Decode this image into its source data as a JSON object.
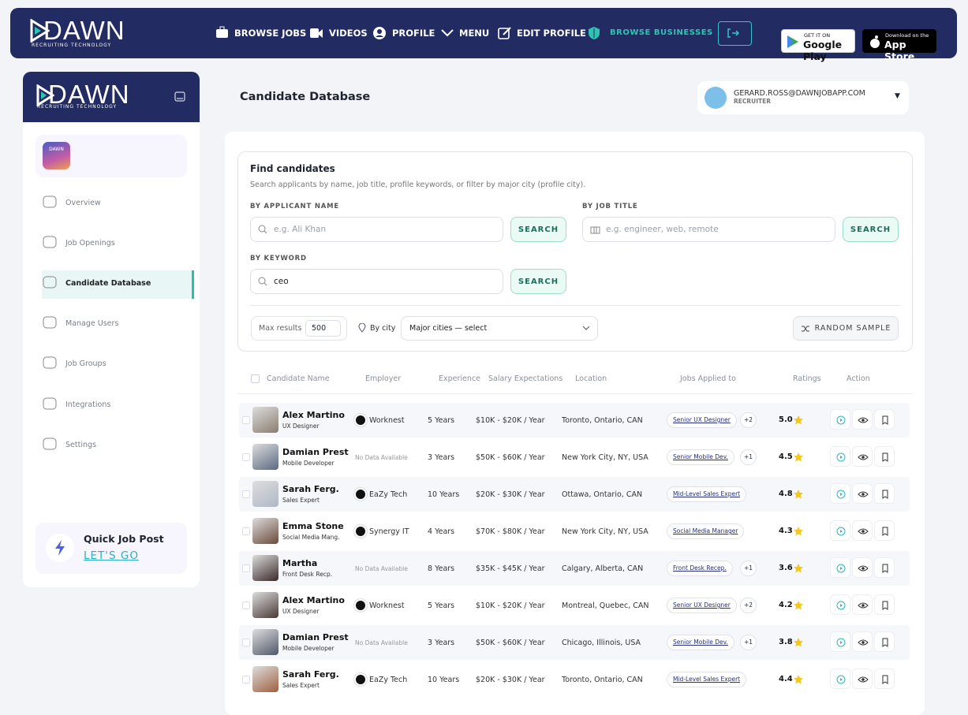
{
  "header": {
    "logo": "DAWN",
    "logo_sub": "RECRUITING TECHNOLOGY",
    "nav": [
      "BROWSE JOBS",
      "VIDEOS",
      "PROFILE",
      "MENU",
      "EDIT PROFILE",
      "BROWSE BUSINESSES"
    ],
    "google_play": {
      "small": "GET IT ON",
      "big": "Google Play"
    },
    "app_store": {
      "small": "Download on the",
      "big": "App Store"
    }
  },
  "sidebar": {
    "logo": "DAWN",
    "logo_sub": "RECRUITING TECHNOLOGY",
    "app_icon": "DAWN",
    "menu": [
      "Overview",
      "Job Openings",
      "Candidate Database",
      "Manage Users",
      "Job Groups",
      "Integrations",
      "Settings"
    ],
    "quick_post": {
      "title": "Quick Job Post",
      "link": "LET'S GO"
    }
  },
  "page": {
    "title": "Candidate Database",
    "user": {
      "email": "GERARD.ROSS@DAWNJOBAPP.COM",
      "role": "RECRUITER"
    }
  },
  "search": {
    "title": "Find candidates",
    "description": "Search applicants by name, job title, profile keywords, or filter by major city (profile city).",
    "name_label": "BY APPLICANT NAME",
    "name_placeholder": "e.g. Ali Khan",
    "job_label": "BY JOB TITLE",
    "job_placeholder": "e.g. engineer, web, remote",
    "keyword_label": "BY KEYWORD",
    "keyword_value": "ceo",
    "search_button": "SEARCH",
    "max_results_label": "Max results",
    "max_results_value": "500",
    "city_label": "By city",
    "city_select": "Major cities — select",
    "random_sample": "RANDOM SAMPLE"
  },
  "table": {
    "headers": [
      "Candidate Name",
      "Employer",
      "Experience",
      "Salary Expectations",
      "Location",
      "Jobs Applied to",
      "Ratings",
      "Action"
    ],
    "rows": [
      {
        "name": "Alex Martino",
        "role": "UX Designer",
        "employer": "Worknest",
        "experience": "5 Years",
        "salary": "$10K - $20K / Year",
        "location": "Toronto, Ontario, CAN",
        "job": "Senior UX Designer",
        "more": "+2",
        "rating": "5.0"
      },
      {
        "name": "Damian Prest",
        "role": "Mobile Developer",
        "employer_placeholder": "No Data Available",
        "experience": "3 Years",
        "salary": "$50K - $60K / Year",
        "location": "New York City, NY, USA",
        "job": "Senior Mobile Dev.",
        "more": "+1",
        "rating": "4.5"
      },
      {
        "name": "Sarah Ferg.",
        "role": "Sales Expert",
        "employer": "EaZy Tech",
        "experience": "10 Years",
        "salary": "$20K - $30K / Year",
        "location": "Ottawa, Ontario, CAN",
        "job": "Mid-Level Sales Expert",
        "rating": "4.8"
      },
      {
        "name": "Emma Stone",
        "role": "Social Media Mang.",
        "employer": "Synergy IT",
        "experience": "4 Years",
        "salary": "$70K - $80K / Year",
        "location": "New York City, NY, USA",
        "job": "Social Media Manager",
        "rating": "4.3"
      },
      {
        "name": "Martha",
        "role": "Front Desk Recp.",
        "employer_placeholder": "No Data Available",
        "experience": "8 Years",
        "salary": "$35K - $45K / Year",
        "location": "Calgary, Alberta, CAN",
        "job": "Front Desk Recep.",
        "more": "+1",
        "rating": "3.6"
      },
      {
        "name": "Alex Martino",
        "role": "UX Designer",
        "employer": "Worknest",
        "experience": "5 Years",
        "salary": "$10K - $20K / Year",
        "location": "Montreal, Quebec, CAN",
        "job": "Senior UX Designer",
        "more": "+2",
        "rating": "4.2"
      },
      {
        "name": "Damian Prest",
        "role": "Mobile Developer",
        "employer_placeholder": "No Data Available",
        "experience": "3 Years",
        "salary": "$50K - $60K / Year",
        "location": "Chicago, Illinois, USA",
        "job": "Senior Mobile Dev.",
        "more": "+1",
        "rating": "3.8"
      },
      {
        "name": "Sarah Ferg.",
        "role": "Sales Expert",
        "employer": "EaZy Tech",
        "experience": "10 Years",
        "salary": "$20K - $30K / Year",
        "location": "Toronto, Ontario, CAN",
        "job": "Mid-Level Sales Expert",
        "rating": "4.4"
      }
    ]
  }
}
